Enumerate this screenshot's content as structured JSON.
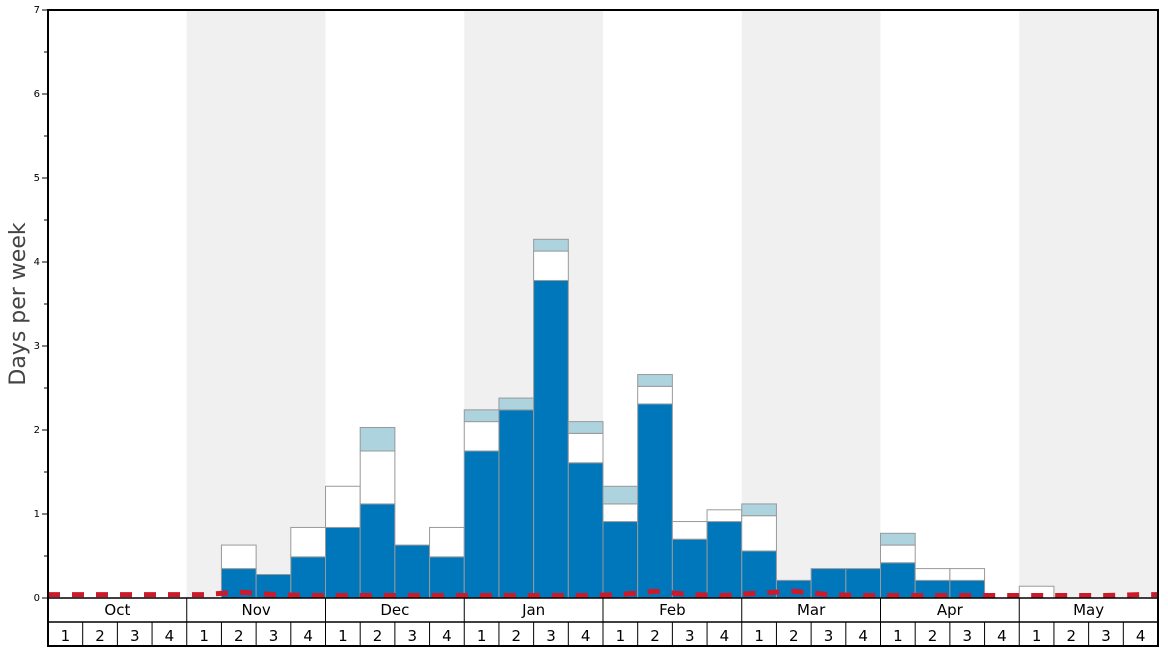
{
  "chart_data": {
    "type": "bar",
    "ylabel": "Days per week",
    "ylim": [
      0,
      7
    ],
    "y_ticks": [
      "0",
      "1",
      "2",
      "3",
      "4",
      "5",
      "6",
      "7"
    ],
    "months": [
      "Oct",
      "Nov",
      "Dec",
      "Jan",
      "Feb",
      "Mar",
      "Apr",
      "May"
    ],
    "week_labels": [
      "1",
      "2",
      "3",
      "4"
    ],
    "stack_order": [
      "dark-blue",
      "white",
      "light-blue"
    ],
    "series": [
      {
        "color": "#0077bb",
        "values": [
          0,
          0,
          0,
          0,
          0,
          0.35,
          0.28,
          0.49,
          0.84,
          1.12,
          0.63,
          0.49,
          1.75,
          2.24,
          3.78,
          1.61,
          0.91,
          2.31,
          0.7,
          0.91,
          0.56,
          0.21,
          0.35,
          0.35,
          0.42,
          0.21,
          0.21,
          0,
          0,
          0,
          0,
          0
        ]
      },
      {
        "color": "#ffffff",
        "values": [
          0,
          0,
          0,
          0,
          0,
          0.28,
          0,
          0.35,
          0.49,
          0.63,
          0,
          0.35,
          0.35,
          0,
          0.35,
          0.35,
          0.21,
          0.21,
          0.21,
          0.14,
          0.42,
          0,
          0,
          0,
          0.21,
          0.14,
          0.14,
          0,
          0.14,
          0,
          0,
          0
        ]
      },
      {
        "color": "#add3df",
        "values": [
          0,
          0,
          0,
          0,
          0,
          0,
          0,
          0,
          0,
          0.28,
          0,
          0,
          0.14,
          0.14,
          0.14,
          0.14,
          0.21,
          0.14,
          0,
          0,
          0.14,
          0,
          0,
          0,
          0.14,
          0,
          0,
          0,
          0,
          0,
          0,
          0
        ]
      }
    ],
    "dashed_line": {
      "color": "#cc1a2b",
      "values": [
        0.04,
        0.04,
        0.04,
        0.04,
        0.04,
        0.07,
        0.04,
        0.03,
        0.03,
        0.03,
        0.03,
        0.03,
        0.03,
        0.03,
        0.03,
        0.03,
        0.04,
        0.08,
        0.04,
        0.03,
        0.06,
        0.08,
        0.04,
        0.03,
        0.03,
        0.03,
        0.03,
        0.03,
        0.03,
        0.03,
        0.03,
        0.04
      ]
    },
    "colors": {
      "shade": "#f0f0f0",
      "bar_stroke": "#999999",
      "axis": "#000000",
      "text": "#000000",
      "ylabel_text": "#444444"
    }
  }
}
